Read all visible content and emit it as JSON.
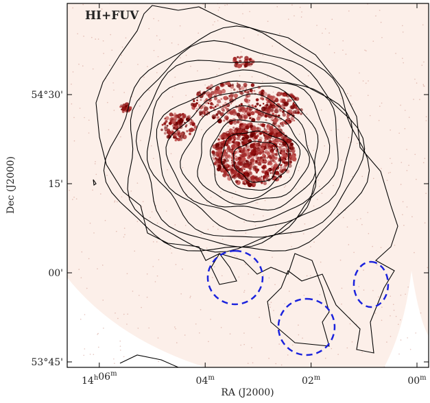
{
  "chart_data": {
    "type": "image",
    "title": "HI+FUV",
    "x_label": "RA (J2000)",
    "y_label": "Dec (J2000)",
    "xlim": [
      6.606,
      -0.22
    ],
    "ylim": [
      -15.92,
      45.35
    ],
    "xticks": [
      {
        "value": 6,
        "label": "14h06m"
      },
      {
        "value": 4,
        "label": "04m"
      },
      {
        "value": 2,
        "label": "02m"
      },
      {
        "value": 0,
        "label": "00m"
      }
    ],
    "yticks": [
      {
        "value": 30,
        "label": "54°30'"
      },
      {
        "value": 15,
        "label": "15'"
      },
      {
        "value": 0,
        "label": "00'"
      },
      {
        "value": -15,
        "label": "53°45'"
      }
    ]
  }
}
